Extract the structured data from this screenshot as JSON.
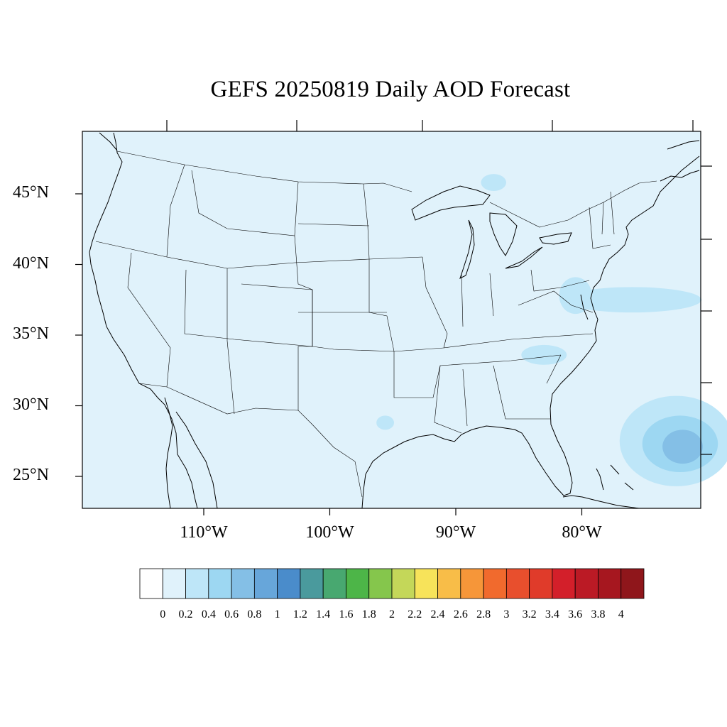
{
  "title": "GEFS 20250819 Daily AOD Forecast",
  "colors": {
    "background": "#ffffff",
    "land_ocean_fill": "#e0f2fb",
    "boundary_lines": "#000000"
  },
  "lat_axis": {
    "labels": [
      "45°N",
      "40°N",
      "35°N",
      "30°N",
      "25°N"
    ],
    "values": [
      45,
      40,
      35,
      30,
      25
    ]
  },
  "lon_axis": {
    "labels": [
      "110°W",
      "100°W",
      "90°W",
      "80°W"
    ],
    "values": [
      -110,
      -100,
      -90,
      -80
    ]
  },
  "map_extent": {
    "lon_min": -119,
    "lon_max": -70,
    "lat_min": 23,
    "lat_max": 49
  },
  "colorbar": {
    "labels": [
      "0",
      "0.2",
      "0.4",
      "0.6",
      "0.8",
      "1",
      "1.2",
      "1.4",
      "1.6",
      "1.8",
      "2",
      "2.2",
      "2.4",
      "2.6",
      "2.8",
      "3",
      "3.2",
      "3.4",
      "3.6",
      "3.8",
      "4"
    ],
    "colors": [
      "#ffffff",
      "#e0f2fb",
      "#bee6f8",
      "#9dd7f2",
      "#84bfe6",
      "#67a6da",
      "#4a8ccb",
      "#4a9a9d",
      "#48a870",
      "#4db548",
      "#85c64c",
      "#c4d759",
      "#f7e35a",
      "#f8bd48",
      "#f69639",
      "#f16a2d",
      "#e84f2d",
      "#e03b2a",
      "#d31f2a",
      "#bb1a25",
      "#a6171f",
      "#8f161b"
    ]
  },
  "aod_features": [
    {
      "level": 0.4,
      "lon": -72.5,
      "lat": 27.5,
      "rx": 4.5,
      "ry": 3.2
    },
    {
      "level": 0.6,
      "lon": -72.2,
      "lat": 27.3,
      "rx": 3.0,
      "ry": 2.0
    },
    {
      "level": 0.8,
      "lon": -72.0,
      "lat": 27.1,
      "rx": 1.6,
      "ry": 1.2
    },
    {
      "level": 0.4,
      "lon": -76.0,
      "lat": 37.5,
      "rx": 5.5,
      "ry": 0.9
    },
    {
      "level": 0.4,
      "lon": -80.5,
      "lat": 37.8,
      "rx": 1.3,
      "ry": 1.3
    },
    {
      "level": 0.4,
      "lon": -83.0,
      "lat": 33.6,
      "rx": 1.8,
      "ry": 0.7
    },
    {
      "level": 0.4,
      "lon": -95.6,
      "lat": 28.8,
      "rx": 0.7,
      "ry": 0.5
    },
    {
      "level": 0.4,
      "lon": -87.0,
      "lat": 45.8,
      "rx": 1.0,
      "ry": 0.6
    }
  ]
}
